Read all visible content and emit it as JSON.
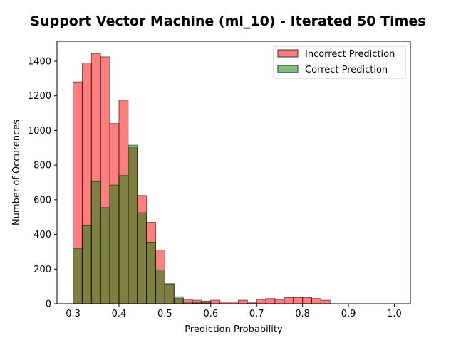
{
  "chart_data": {
    "type": "histogram",
    "title": "Support Vector Machine (ml_10) - Iterated 50 Times",
    "xlabel": "Prediction Probability",
    "ylabel": "Number of Occurences",
    "xlim": [
      0.265,
      1.035
    ],
    "ylim": [
      0,
      1515
    ],
    "x_ticks": [
      0.3,
      0.4,
      0.5,
      0.6,
      0.7,
      0.8,
      0.9,
      1.0
    ],
    "x_tick_labels": [
      "0.3",
      "0.4",
      "0.5",
      "0.6",
      "0.7",
      "0.8",
      "0.9",
      "1.0"
    ],
    "y_ticks": [
      0,
      200,
      400,
      600,
      800,
      1000,
      1200,
      1400
    ],
    "y_tick_labels": [
      "0",
      "200",
      "400",
      "600",
      "800",
      "1000",
      "1200",
      "1400"
    ],
    "bin_start": 0.3,
    "bin_width": 0.02,
    "legend_position": "upper-right",
    "series": [
      {
        "name": "Incorrect Prediction",
        "color": "#ff0000",
        "alpha": 0.5,
        "values": [
          1280,
          1390,
          1445,
          1425,
          1040,
          1175,
          900,
          625,
          470,
          310,
          115,
          30,
          25,
          20,
          15,
          20,
          10,
          10,
          20,
          5,
          25,
          30,
          25,
          35,
          35,
          35,
          30,
          20,
          0,
          0,
          0,
          0,
          0,
          0,
          0
        ]
      },
      {
        "name": "Correct Prediction",
        "color": "#008000",
        "alpha": 0.5,
        "values": [
          320,
          450,
          705,
          555,
          685,
          740,
          915,
          525,
          355,
          195,
          115,
          40,
          10,
          5,
          5,
          0,
          0,
          0,
          0,
          0,
          0,
          0,
          0,
          0,
          0,
          0,
          0,
          0,
          0,
          0,
          0,
          0,
          0,
          0,
          0
        ]
      }
    ]
  }
}
